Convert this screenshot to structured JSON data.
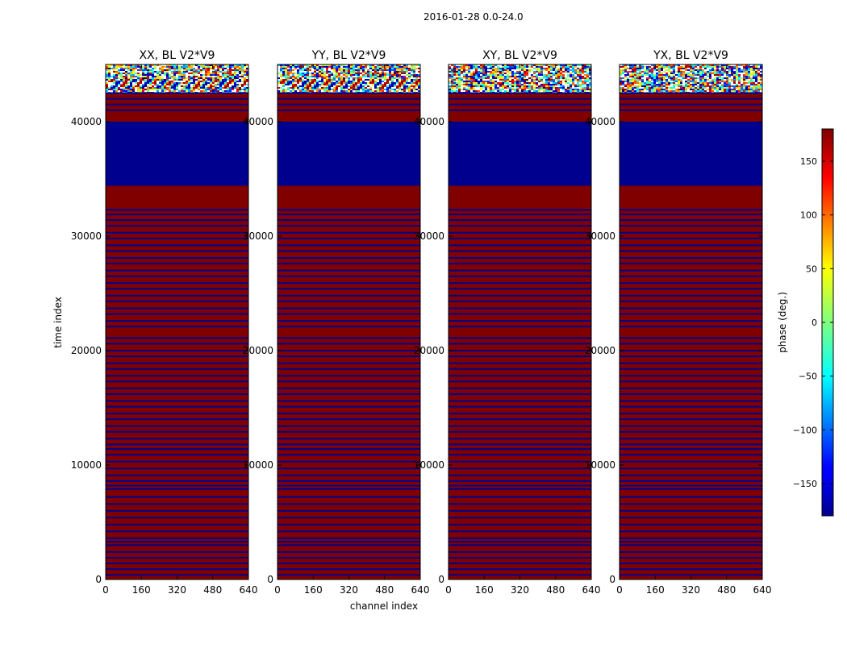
{
  "chart_data": {
    "type": "heatmap",
    "suptitle": "2016-01-28 0.0-24.0",
    "xlabel": "channel index",
    "ylabel": "time index",
    "xlim": [
      0,
      640
    ],
    "ylim": [
      0,
      45000
    ],
    "x_ticks": [
      "0",
      "160",
      "320",
      "480",
      "640"
    ],
    "x_tick_values": [
      0,
      160,
      320,
      480,
      640
    ],
    "y_ticks": [
      "0",
      "10000",
      "20000",
      "30000",
      "40000"
    ],
    "y_tick_values": [
      0,
      10000,
      20000,
      30000,
      40000
    ],
    "panels": [
      {
        "title": "XX, BL V2*V9",
        "noise": "fringe"
      },
      {
        "title": "YY, BL V2*V9",
        "noise": "fringe"
      },
      {
        "title": "XY, BL V2*V9",
        "noise": "speckle"
      },
      {
        "title": "YX, BL V2*V9",
        "noise": "speckle"
      }
    ],
    "background_phase_deg": 180,
    "regions": [
      {
        "from": 34400,
        "to": 40000,
        "phase_deg": -180,
        "label": "uniform low-phase block"
      },
      {
        "from": 42500,
        "to": 45000,
        "phase_deg": null,
        "label": "noisy phase region"
      }
    ],
    "stripe_rows": [
      400,
      900,
      1400,
      1900,
      2400,
      3000,
      3300,
      3600,
      4200,
      4800,
      5400,
      6000,
      6600,
      7200,
      7900,
      8200,
      8600,
      9100,
      9700,
      10300,
      10900,
      11400,
      11800,
      12300,
      12900,
      13400,
      14000,
      14500,
      15100,
      15600,
      16200,
      16700,
      17300,
      17800,
      18400,
      18900,
      19500,
      20000,
      20600,
      21100,
      22100,
      22600,
      23200,
      23700,
      24300,
      24800,
      25400,
      25900,
      26500,
      27000,
      27600,
      28100,
      28700,
      29200,
      29800,
      30300,
      30900,
      31400,
      31900,
      32300,
      41000,
      41500,
      42000
    ],
    "colorbar": {
      "label": "phase (deg.)",
      "range": [
        -180,
        180
      ],
      "ticks": [
        "150",
        "100",
        "50",
        "0",
        "−50",
        "−100",
        "−150"
      ],
      "tick_values": [
        150,
        100,
        50,
        0,
        -50,
        -100,
        -150
      ],
      "colormap": "jet",
      "low_color": "#00008f",
      "high_color": "#800000"
    }
  }
}
